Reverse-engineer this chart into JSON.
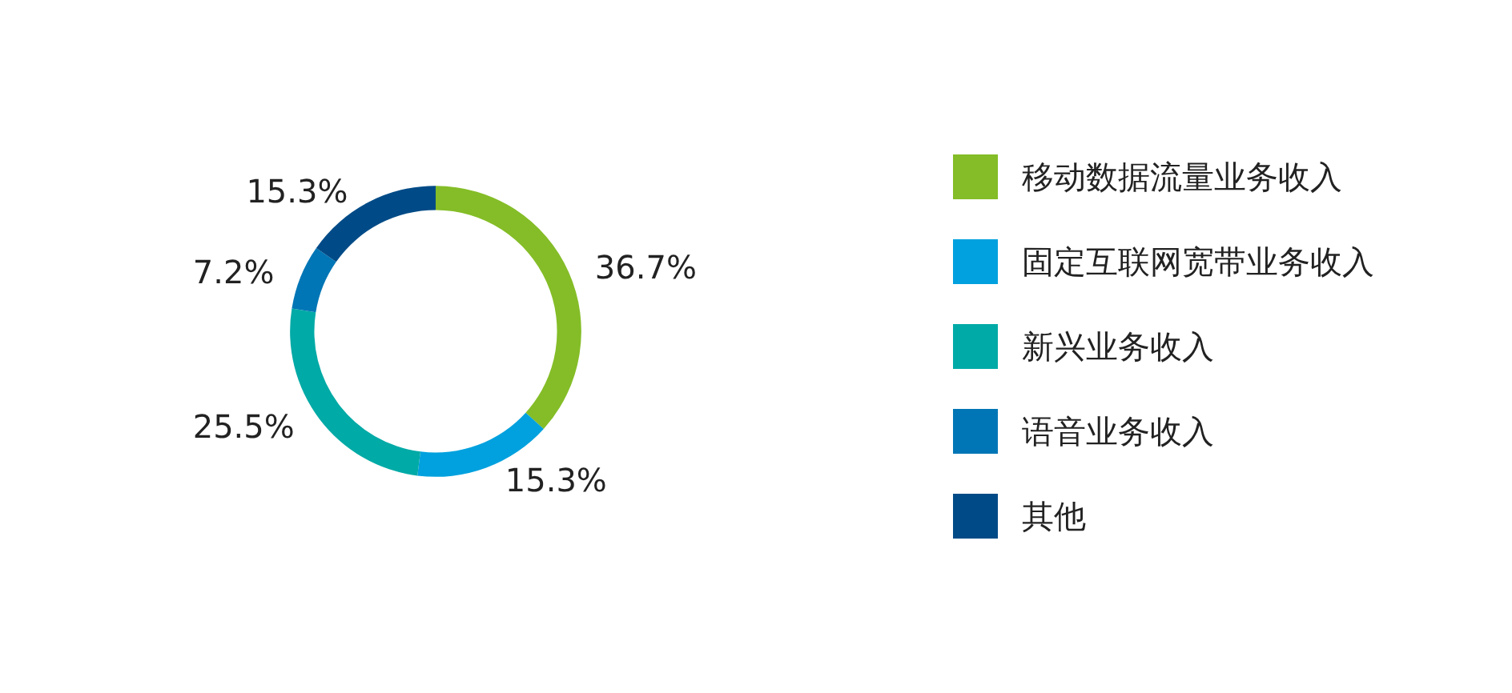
{
  "chart_data": {
    "type": "donut",
    "categories": [
      "移动数据流量业务收入",
      "固定互联网宽带业务收入",
      "新兴业务收入",
      "语音业务收入",
      "其他"
    ],
    "values": [
      36.7,
      15.3,
      25.5,
      7.2,
      15.3
    ],
    "value_labels": [
      "36.7%",
      "15.3%",
      "25.5%",
      "7.2%",
      "15.3%"
    ],
    "colors": [
      "#84bd27",
      "#00a1de",
      "#00aaa6",
      "#0076b6",
      "#004b87"
    ],
    "legend": "right"
  }
}
